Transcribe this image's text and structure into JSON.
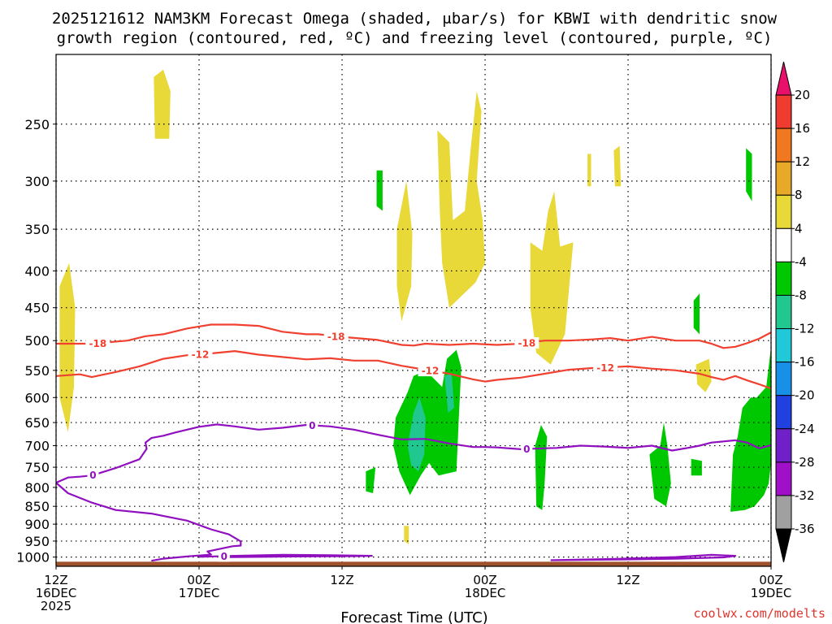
{
  "title_line1": "2025121612 NAM3KM Forecast Omega (shaded, μbar/s) for KBWI with dendritic snow",
  "title_line2": "growth region (contoured, red, ºC) and freezing level (contoured, purple, ºC)",
  "credit": "coolwx.com/modelts",
  "chart_data": {
    "type": "time-height contour",
    "title": "2025121612 NAM3KM Forecast Omega (shaded, μbar/s) for KBWI with dendritic snow growth region (contoured, red, ºC) and freezing level (contoured, purple, ºC)",
    "xlabel": "Forecast Time (UTC)",
    "ylabel": "Pressure (hPa)",
    "y_scale": "log, reversed",
    "ylim": [
      1030,
      200
    ],
    "xlim_hours": [
      0,
      36
    ],
    "x_ticks": [
      {
        "hour": 0,
        "line1": "12Z",
        "line2": "16DEC",
        "line3": "2025"
      },
      {
        "hour": 12,
        "line1": "00Z",
        "line2": "17DEC",
        "line3": ""
      },
      {
        "hour": 24,
        "line1": "12Z",
        "line2": "",
        "line3": ""
      },
      {
        "hour": 36,
        "line1": "00Z",
        "line2": "18DEC",
        "line3": ""
      },
      {
        "hour": 48,
        "line1": "12Z",
        "line2": "",
        "line3": ""
      },
      {
        "hour": 60,
        "line1": "00Z",
        "line2": "19DEC",
        "line3": ""
      }
    ],
    "y_ticks": [
      250,
      300,
      350,
      400,
      450,
      500,
      550,
      600,
      650,
      700,
      750,
      800,
      850,
      900,
      950,
      1000
    ],
    "grid": true,
    "ground_pressure": 1015,
    "colorbar": {
      "levels": [
        20,
        16,
        12,
        8,
        4,
        -4,
        -8,
        -12,
        -16,
        -20,
        -24,
        -28,
        -32,
        -36
      ],
      "colors": [
        "#e8106a",
        "#f03c30",
        "#f07820",
        "#e8a828",
        "#e8d838",
        "#ffffff",
        "#00c800",
        "#20c890",
        "#20c8d8",
        "#1890e8",
        "#2040e0",
        "#7020c8",
        "#a010c8",
        "#a0a0a0",
        "#000000"
      ]
    },
    "omega_regions": [
      {
        "level": 4,
        "color": "#e8d838",
        "points": [
          [
            8.2,
            215
          ],
          [
            9.0,
            210
          ],
          [
            9.6,
            225
          ],
          [
            9.5,
            262
          ],
          [
            8.3,
            262
          ]
        ]
      },
      {
        "level": 4,
        "color": "#e8d838",
        "points": [
          [
            0.3,
            420
          ],
          [
            1.1,
            390
          ],
          [
            1.6,
            450
          ],
          [
            1.5,
            580
          ],
          [
            1.0,
            670
          ],
          [
            0.3,
            600
          ]
        ]
      },
      {
        "level": 4,
        "color": "#e8d838",
        "points": [
          [
            28.6,
            350
          ],
          [
            29.4,
            300
          ],
          [
            29.9,
            355
          ],
          [
            29.8,
            420
          ],
          [
            29.0,
            470
          ],
          [
            28.6,
            420
          ]
        ]
      },
      {
        "level": 4,
        "color": "#e8d838",
        "points": [
          [
            32.0,
            255
          ],
          [
            33.0,
            265
          ],
          [
            33.3,
            340
          ],
          [
            34.3,
            330
          ],
          [
            34.8,
            270
          ],
          [
            35.3,
            225
          ],
          [
            35.7,
            240
          ],
          [
            35.3,
            300
          ],
          [
            35.8,
            340
          ],
          [
            36.0,
            390
          ],
          [
            35.2,
            415
          ],
          [
            33.0,
            450
          ],
          [
            32.4,
            390
          ],
          [
            32.2,
            330
          ]
        ]
      },
      {
        "level": 4,
        "color": "#e8d838",
        "points": [
          [
            39.8,
            365
          ],
          [
            40.8,
            375
          ],
          [
            41.3,
            330
          ],
          [
            41.8,
            310
          ],
          [
            42.3,
            370
          ],
          [
            43.4,
            365
          ],
          [
            42.7,
            490
          ],
          [
            41.5,
            540
          ],
          [
            40.3,
            520
          ],
          [
            39.8,
            450
          ]
        ]
      },
      {
        "level": 4,
        "color": "#e8d838",
        "points": [
          [
            44.6,
            275
          ],
          [
            44.9,
            275
          ],
          [
            44.9,
            305
          ],
          [
            44.6,
            305
          ]
        ]
      },
      {
        "level": 4,
        "color": "#e8d838",
        "points": [
          [
            46.8,
            272
          ],
          [
            47.3,
            268
          ],
          [
            47.4,
            305
          ],
          [
            46.9,
            305
          ]
        ]
      },
      {
        "level": 4,
        "color": "#e8d838",
        "points": [
          [
            53.7,
            540
          ],
          [
            54.8,
            530
          ],
          [
            55.0,
            570
          ],
          [
            54.5,
            590
          ],
          [
            53.8,
            575
          ]
        ]
      },
      {
        "level": 4,
        "color": "#e8d838",
        "points": [
          [
            59.2,
            675
          ],
          [
            59.6,
            680
          ],
          [
            59.5,
            730
          ],
          [
            59.1,
            710
          ]
        ]
      },
      {
        "level": 4,
        "color": "#e8d838",
        "points": [
          [
            29.2,
            905
          ],
          [
            29.6,
            905
          ],
          [
            29.6,
            960
          ],
          [
            29.2,
            950
          ]
        ]
      },
      {
        "level": -4,
        "color": "#00c800",
        "points": [
          [
            26.9,
            290
          ],
          [
            27.4,
            290
          ],
          [
            27.4,
            330
          ],
          [
            26.9,
            325
          ]
        ]
      },
      {
        "level": -4,
        "color": "#00c800",
        "points": [
          [
            53.5,
            440
          ],
          [
            54.0,
            430
          ],
          [
            54.0,
            490
          ],
          [
            53.5,
            480
          ]
        ]
      },
      {
        "level": -4,
        "color": "#00c800",
        "points": [
          [
            57.9,
            270
          ],
          [
            58.4,
            275
          ],
          [
            58.4,
            320
          ],
          [
            57.9,
            310
          ]
        ]
      },
      {
        "level": -4,
        "color": "#00c800",
        "points": [
          [
            28.5,
            640
          ],
          [
            29.5,
            590
          ],
          [
            30.0,
            560
          ],
          [
            31.0,
            550
          ],
          [
            32.4,
            580
          ],
          [
            32.8,
            530
          ],
          [
            33.6,
            515
          ],
          [
            34.0,
            545
          ],
          [
            33.8,
            640
          ],
          [
            33.6,
            760
          ],
          [
            32.1,
            770
          ],
          [
            31.3,
            740
          ],
          [
            30.6,
            770
          ],
          [
            29.7,
            820
          ],
          [
            28.8,
            760
          ],
          [
            28.3,
            700
          ]
        ]
      },
      {
        "level": -4,
        "color": "#00c800",
        "points": [
          [
            26.0,
            760
          ],
          [
            26.8,
            750
          ],
          [
            26.6,
            815
          ],
          [
            26.0,
            810
          ]
        ]
      },
      {
        "level": -4,
        "color": "#00c800",
        "points": [
          [
            40.2,
            700
          ],
          [
            40.7,
            655
          ],
          [
            41.2,
            680
          ],
          [
            41.0,
            790
          ],
          [
            40.8,
            860
          ],
          [
            40.3,
            850
          ]
        ]
      },
      {
        "level": -4,
        "color": "#00c800",
        "points": [
          [
            49.8,
            720
          ],
          [
            50.7,
            700
          ],
          [
            51.0,
            650
          ],
          [
            51.3,
            700
          ],
          [
            51.6,
            790
          ],
          [
            51.2,
            850
          ],
          [
            50.2,
            830
          ]
        ]
      },
      {
        "level": -4,
        "color": "#00c800",
        "points": [
          [
            53.3,
            730
          ],
          [
            54.2,
            735
          ],
          [
            54.2,
            770
          ],
          [
            53.3,
            770
          ]
        ]
      },
      {
        "level": -4,
        "color": "#00c800",
        "points": [
          [
            57.2,
            680
          ],
          [
            57.6,
            620
          ],
          [
            58.3,
            600
          ],
          [
            58.8,
            600
          ],
          [
            59.6,
            580
          ],
          [
            60.0,
            510
          ],
          [
            60.0,
            740
          ],
          [
            59.8,
            790
          ],
          [
            59.4,
            820
          ],
          [
            58.6,
            850
          ],
          [
            57.8,
            860
          ],
          [
            56.6,
            865
          ],
          [
            56.8,
            720
          ]
        ]
      },
      {
        "level": -8,
        "color": "#20c890",
        "points": [
          [
            29.5,
            700
          ],
          [
            30.0,
            630
          ],
          [
            30.5,
            600
          ],
          [
            31.0,
            640
          ],
          [
            30.9,
            720
          ],
          [
            30.4,
            760
          ],
          [
            29.8,
            745
          ]
        ]
      },
      {
        "level": -8,
        "color": "#20c890",
        "points": [
          [
            32.6,
            560
          ],
          [
            33.2,
            555
          ],
          [
            33.4,
            620
          ],
          [
            32.9,
            630
          ]
        ]
      }
    ],
    "series": [
      {
        "name": "DGZ -18 °C",
        "color": "#f04030",
        "label": "-18",
        "hours": [
          0,
          3,
          6,
          7.5,
          9,
          11,
          13,
          15,
          17,
          19,
          21,
          22,
          24,
          27,
          29,
          30,
          31,
          33,
          35,
          37,
          39,
          41,
          43,
          45,
          46.5,
          48,
          50,
          52,
          54,
          55,
          56,
          57,
          58,
          59,
          60
        ],
        "pressure": [
          505,
          505,
          500,
          493,
          490,
          481,
          475,
          475,
          477,
          486,
          490,
          490,
          494,
          499,
          507,
          508,
          505,
          507,
          505,
          507,
          505,
          500,
          500,
          498,
          496,
          500,
          494,
          500,
          500,
          505,
          512,
          510,
          504,
          497,
          487
        ],
        "labels_at_hours": [
          3.5,
          23.5,
          39.5
        ]
      },
      {
        "name": "DGZ -12 °C",
        "color": "#f04030",
        "label": "-12",
        "hours": [
          0,
          2,
          3,
          5,
          7,
          9,
          11,
          13,
          15,
          17,
          19,
          21,
          23,
          25,
          27,
          29,
          31,
          33,
          35,
          36,
          37,
          39,
          41,
          43,
          45,
          48,
          50,
          52,
          54,
          55,
          56,
          57,
          58,
          59,
          60
        ],
        "pressure": [
          560,
          557,
          562,
          553,
          543,
          530,
          524,
          521,
          517,
          523,
          527,
          531,
          529,
          533,
          533,
          542,
          549,
          556,
          566,
          570,
          567,
          563,
          556,
          549,
          546,
          543,
          547,
          550,
          556,
          562,
          567,
          560,
          568,
          575,
          583
        ],
        "labels_at_hours": [
          12.1,
          31.4,
          46.1
        ]
      },
      {
        "name": "Freezing level 0 °C",
        "color": "#9010c0",
        "label": "0",
        "hours": [
          0,
          1,
          2,
          3,
          5,
          7,
          7.6,
          7.5,
          8,
          9,
          10,
          12,
          13.5,
          15,
          17,
          19,
          21,
          23,
          25,
          27,
          29,
          31,
          33,
          35,
          36,
          37,
          39,
          40.8,
          42,
          44,
          46,
          48,
          50,
          51.7,
          53,
          54,
          55,
          57,
          58,
          59,
          60
        ],
        "pressure": [
          788,
          775,
          773,
          770,
          752,
          731,
          707,
          693,
          683,
          678,
          671,
          659,
          654,
          658,
          665,
          661,
          655,
          658,
          665,
          676,
          686,
          685,
          695,
          703,
          703,
          704,
          708,
          706,
          705,
          700,
          702,
          705,
          700,
          711,
          705,
          700,
          693,
          688,
          693,
          706,
          699
        ],
        "labels_at_hours": [
          3.1,
          21.5,
          39.5
        ]
      },
      {
        "name": "Freezing level 0 °C (low lobe)",
        "color": "#9010c0",
        "label": "0",
        "hours": [
          0,
          1,
          3,
          5,
          8,
          11,
          13,
          14.5,
          15.5,
          15.5,
          14.8,
          13.5,
          12.7,
          13,
          12,
          11,
          9,
          8
        ],
        "pressure": [
          788,
          815,
          840,
          860,
          870,
          890,
          915,
          930,
          951,
          964,
          966,
          976,
          982,
          992,
          995,
          998,
          1005,
          1012
        ],
        "labels_at_hours": []
      },
      {
        "name": "Freezing level 0 °C (near surface)",
        "color": "#9010c0",
        "label": "0",
        "hours": [
          12,
          15,
          19,
          23,
          26.5,
          25,
          20,
          15,
          14
        ],
        "pressure": [
          999,
          996,
          993,
          994,
          996,
          997,
          998,
          1000,
          1000
        ],
        "labels_at_hours": [
          14.1
        ]
      },
      {
        "name": "Freezing level 0 °C (near surface, late)",
        "color": "#9010c0",
        "label": "0",
        "hours": [
          41.5,
          47,
          52,
          55,
          57,
          56,
          52,
          47,
          41.5
        ],
        "pressure": [
          1010,
          1006,
          1000,
          993,
          996,
          1001,
          1005,
          1008,
          1010
        ],
        "labels_at_hours": []
      }
    ]
  }
}
